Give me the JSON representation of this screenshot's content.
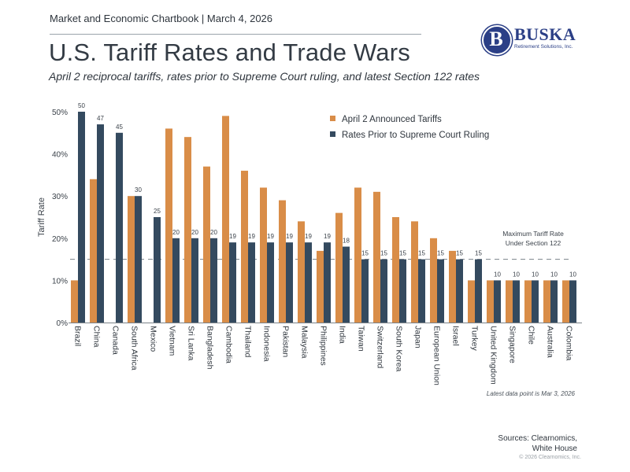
{
  "header": {
    "chartbook": "Market and Economic Chartbook | March 4, 2026",
    "title": "U.S. Tariff Rates and Trade Wars",
    "subtitle": "April 2 reciprocal tariffs, rates prior to Supreme Court ruling, and latest Section 122 rates"
  },
  "logo": {
    "letter": "B",
    "name": "BUSKA",
    "tagline": "Retirement Solutions, Inc.",
    "color": "#2b3f86"
  },
  "footer": {
    "note": "Latest data point is Mar 3, 2026",
    "sources_line1": "Sources: Clearnomics,",
    "sources_line2": "White House",
    "copyright": "© 2026 Clearnomics, Inc."
  },
  "chart_data": {
    "type": "bar",
    "title": "U.S. Tariff Rates and Trade Wars",
    "xlabel": "",
    "ylabel": "Tariff Rate",
    "ylim": [
      0,
      50
    ],
    "yticks": [
      0,
      10,
      20,
      30,
      40,
      50
    ],
    "ytick_format": "%",
    "grid": false,
    "legend_position": "top-right",
    "categories": [
      "Brazil",
      "China",
      "Canada",
      "South Africa",
      "Mexico",
      "Vietnam",
      "Sri Lanka",
      "Bangladesh",
      "Cambodia",
      "Thailand",
      "Indonesia",
      "Pakistan",
      "Malaysia",
      "Philippines",
      "India",
      "Taiwan",
      "Switzerland",
      "South Korea",
      "Japan",
      "European Union",
      "Israel",
      "Turkey",
      "United Kingdom",
      "Singapore",
      "Chile",
      "Australia",
      "Colombia"
    ],
    "series": [
      {
        "name": "April 2 Announced Tariffs",
        "color": "#d98d48",
        "values": [
          10,
          34,
          0,
          30,
          0,
          46,
          44,
          37,
          49,
          36,
          32,
          29,
          24,
          17,
          26,
          32,
          31,
          25,
          24,
          20,
          17,
          10,
          10,
          10,
          10,
          10,
          10
        ],
        "show_labels": false
      },
      {
        "name": "Rates Prior to Supreme Court Ruling",
        "color": "#344a5f",
        "values": [
          50,
          47,
          45,
          30,
          25,
          20,
          20,
          20,
          19,
          19,
          19,
          19,
          19,
          19,
          18,
          15,
          15,
          15,
          15,
          15,
          15,
          15,
          10,
          10,
          10,
          10,
          10
        ],
        "show_labels": true
      }
    ],
    "reference_line": {
      "value": 15,
      "style": "dashed",
      "label_line1": "Maximum Tariff Rate",
      "label_line2": "Under Section 122"
    }
  }
}
